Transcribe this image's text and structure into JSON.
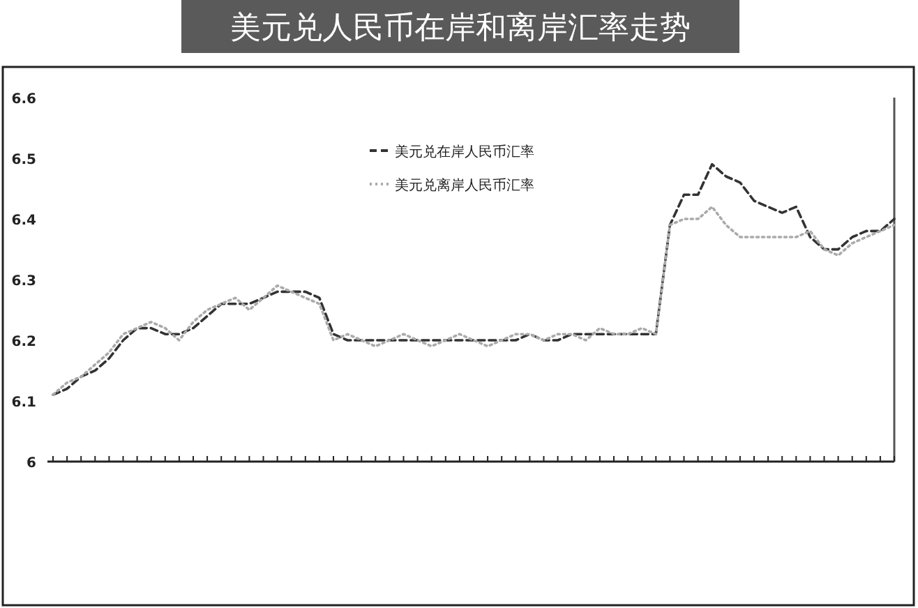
{
  "chart_data": {
    "type": "line",
    "title": "美元兑人民币在岸和离岸汇率走势",
    "categories": [
      null,
      null,
      null,
      null,
      null,
      null,
      null,
      null,
      null,
      null,
      null,
      null,
      null,
      null,
      null,
      null,
      null,
      null,
      null,
      null,
      null,
      null,
      null,
      null,
      null,
      null,
      null,
      null,
      null,
      null,
      null,
      null,
      null,
      null,
      null,
      null,
      null,
      null,
      null,
      null,
      null,
      null,
      null,
      null,
      null,
      null,
      null,
      null,
      null,
      null,
      null,
      null,
      null,
      null,
      null,
      null,
      null,
      null,
      null,
      null,
      null
    ],
    "series": [
      {
        "name": "美元兑在岸人民币汇率",
        "color": "#333333",
        "line_style": "dashed",
        "values": [
          6.11,
          6.12,
          6.14,
          6.15,
          6.17,
          6.2,
          6.22,
          6.22,
          6.21,
          6.21,
          6.22,
          6.24,
          6.26,
          6.26,
          6.26,
          6.27,
          6.28,
          6.28,
          6.28,
          6.27,
          6.21,
          6.2,
          6.2,
          6.2,
          6.2,
          6.2,
          6.2,
          6.2,
          6.2,
          6.2,
          6.2,
          6.2,
          6.2,
          6.2,
          6.21,
          6.2,
          6.2,
          6.21,
          6.21,
          6.21,
          6.21,
          6.21,
          6.21,
          6.21,
          6.39,
          6.44,
          6.44,
          6.49,
          6.47,
          6.46,
          6.43,
          6.42,
          6.41,
          6.42,
          6.37,
          6.35,
          6.35,
          6.37,
          6.38,
          6.38,
          6.4
        ]
      },
      {
        "name": "美元兑离岸人民币汇率",
        "color": "#aaaaaa",
        "line_style": "dotted",
        "values": [
          6.11,
          6.13,
          6.14,
          6.16,
          6.18,
          6.21,
          6.22,
          6.23,
          6.22,
          6.2,
          6.23,
          6.25,
          6.26,
          6.27,
          6.25,
          6.27,
          6.29,
          6.28,
          6.27,
          6.26,
          6.2,
          6.21,
          6.2,
          6.19,
          6.2,
          6.21,
          6.2,
          6.19,
          6.2,
          6.21,
          6.2,
          6.19,
          6.2,
          6.21,
          6.21,
          6.2,
          6.21,
          6.21,
          6.2,
          6.22,
          6.21,
          6.21,
          6.22,
          6.21,
          6.39,
          6.4,
          6.4,
          6.42,
          6.39,
          6.37,
          6.37,
          6.37,
          6.37,
          6.37,
          6.38,
          6.35,
          6.34,
          6.36,
          6.37,
          6.38,
          6.39
        ]
      }
    ],
    "ylim": [
      6.0,
      6.6
    ],
    "yticks": [
      6,
      6.1,
      6.2,
      6.3,
      6.4,
      6.5,
      6.6
    ],
    "legend": "top"
  }
}
